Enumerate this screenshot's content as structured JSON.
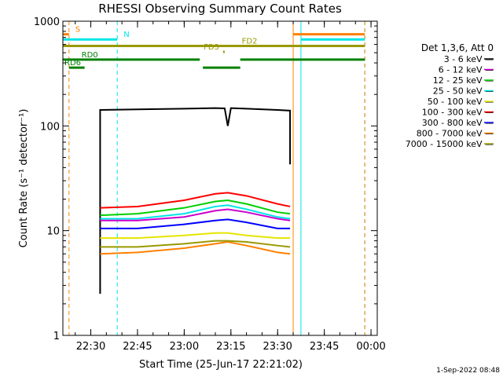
{
  "chart_data": {
    "type": "line",
    "title": "RHESSI Observing Summary Count Rates",
    "xlabel": "Start Time (25-Jun-17 22:21:02)",
    "ylabel": "Count Rate (s⁻¹ detector⁻¹)",
    "y_scale": "log",
    "ylim": [
      1,
      1000
    ],
    "xlim": [
      "22:21:02",
      "00:02:00"
    ],
    "x_tick_labels": [
      "22:30",
      "22:45",
      "23:00",
      "23:15",
      "23:30",
      "23:45",
      "00:00"
    ],
    "y_tick_labels": [
      "1",
      "10",
      "100",
      "1000"
    ],
    "legend_title": "Det 1,3,6, Att 0",
    "legend_position": "right",
    "timestamp": "1-Sep-2022 08:48",
    "series": [
      {
        "name": "3 - 6 keV",
        "color": "#000000",
        "points": [
          [
            "22:33",
            2.5
          ],
          [
            "22:33",
            142
          ],
          [
            "22:45",
            144
          ],
          [
            "23:00",
            146
          ],
          [
            "23:10",
            148
          ],
          [
            "23:13",
            147
          ],
          [
            "23:14",
            100
          ],
          [
            "23:15",
            148
          ],
          [
            "23:20",
            146
          ],
          [
            "23:30",
            142
          ],
          [
            "23:34",
            140
          ],
          [
            "23:34",
            43
          ]
        ]
      },
      {
        "name": "6 - 12 keV",
        "color": "#cc00cc",
        "points": [
          [
            "22:33",
            12.5
          ],
          [
            "22:45",
            12.5
          ],
          [
            "23:00",
            13.5
          ],
          [
            "23:10",
            15.5
          ],
          [
            "23:14",
            16
          ],
          [
            "23:20",
            15
          ],
          [
            "23:30",
            13
          ],
          [
            "23:34",
            12.5
          ]
        ]
      },
      {
        "name": "12 - 25 keV",
        "color": "#00d000",
        "points": [
          [
            "22:33",
            14
          ],
          [
            "22:45",
            14.5
          ],
          [
            "23:00",
            16.5
          ],
          [
            "23:10",
            19
          ],
          [
            "23:14",
            19.5
          ],
          [
            "23:20",
            18
          ],
          [
            "23:30",
            15
          ],
          [
            "23:34",
            14.5
          ]
        ]
      },
      {
        "name": "25 - 50 keV",
        "color": "#00e5e5",
        "points": [
          [
            "22:33",
            13
          ],
          [
            "22:45",
            13
          ],
          [
            "23:00",
            14.5
          ],
          [
            "23:10",
            17
          ],
          [
            "23:14",
            17.5
          ],
          [
            "23:20",
            16
          ],
          [
            "23:30",
            13.5
          ],
          [
            "23:34",
            13
          ]
        ]
      },
      {
        "name": "50 - 100 keV",
        "color": "#e5e500",
        "points": [
          [
            "22:33",
            8.5
          ],
          [
            "22:45",
            8.5
          ],
          [
            "23:00",
            9
          ],
          [
            "23:10",
            9.5
          ],
          [
            "23:14",
            9.5
          ],
          [
            "23:20",
            9
          ],
          [
            "23:30",
            8.5
          ],
          [
            "23:34",
            8.5
          ]
        ]
      },
      {
        "name": "100 - 300 keV",
        "color": "#ff0000",
        "points": [
          [
            "22:33",
            16.5
          ],
          [
            "22:45",
            17
          ],
          [
            "23:00",
            19.5
          ],
          [
            "23:10",
            22.5
          ],
          [
            "23:14",
            23
          ],
          [
            "23:20",
            21.5
          ],
          [
            "23:30",
            18
          ],
          [
            "23:34",
            17
          ]
        ]
      },
      {
        "name": "300 - 800 keV",
        "color": "#0000ff",
        "points": [
          [
            "22:33",
            10.5
          ],
          [
            "22:45",
            10.5
          ],
          [
            "23:00",
            11.5
          ],
          [
            "23:10",
            12.5
          ],
          [
            "23:14",
            12.8
          ],
          [
            "23:20",
            12
          ],
          [
            "23:30",
            10.5
          ],
          [
            "23:34",
            10.5
          ]
        ]
      },
      {
        "name": "800 - 7000 keV",
        "color": "#ff8000",
        "points": [
          [
            "22:33",
            6
          ],
          [
            "22:45",
            6.2
          ],
          [
            "23:00",
            6.8
          ],
          [
            "23:10",
            7.5
          ],
          [
            "23:14",
            7.8
          ],
          [
            "23:20",
            7.2
          ],
          [
            "23:30",
            6.2
          ],
          [
            "23:34",
            6
          ]
        ]
      },
      {
        "name": "7000 - 15000 keV",
        "color": "#999900",
        "points": [
          [
            "22:33",
            7
          ],
          [
            "22:45",
            7
          ],
          [
            "23:00",
            7.5
          ],
          [
            "23:10",
            8
          ],
          [
            "23:14",
            8
          ],
          [
            "23:20",
            7.8
          ],
          [
            "23:30",
            7.2
          ],
          [
            "23:34",
            7
          ]
        ]
      }
    ],
    "flag_bars": [
      {
        "label": "S",
        "color": "#ff8000",
        "level": 750,
        "segments": [
          [
            "22:21:02",
            "22:23:00"
          ],
          [
            "23:35:00",
            "23:58:00"
          ]
        ]
      },
      {
        "label": "N",
        "color": "#00e5e5",
        "level": 670,
        "segments": [
          [
            "22:21:02",
            "22:38:30"
          ],
          [
            "23:37:30",
            "23:58:00"
          ]
        ]
      },
      {
        "label": "FD2",
        "color": "#999900",
        "level": 580,
        "segments": [
          [
            "22:21:02",
            "23:58:00"
          ]
        ]
      },
      {
        "label": "FD3",
        "color": "#999900",
        "level": 510,
        "segments": [
          [
            "23:12:30",
            "23:13:00"
          ]
        ]
      },
      {
        "label": "RD0",
        "color": "#008000",
        "level": 430,
        "segments": [
          [
            "22:21:02",
            "23:05:00"
          ],
          [
            "23:18:00",
            "23:58:00"
          ]
        ]
      },
      {
        "label": "RD6",
        "color": "#008000",
        "level": 360,
        "segments": [
          [
            "22:23:00",
            "22:28:00"
          ],
          [
            "23:06:00",
            "23:18:00"
          ]
        ]
      }
    ],
    "vertical_lines": [
      {
        "time": "22:21:02",
        "color": "#00e5e5",
        "dashed": false
      },
      {
        "time": "22:23:00",
        "color": "#ff8000",
        "dashed": true
      },
      {
        "time": "22:38:30",
        "color": "#00e5e5",
        "dashed": true
      },
      {
        "time": "23:35:00",
        "color": "#ff8000",
        "dashed": false
      },
      {
        "time": "23:37:30",
        "color": "#00e5e5",
        "dashed": false
      },
      {
        "time": "23:58:00",
        "color": "#00e5e5",
        "dashed": true
      },
      {
        "time": "23:58:00",
        "color": "#ff8000",
        "dashed": true
      }
    ]
  }
}
